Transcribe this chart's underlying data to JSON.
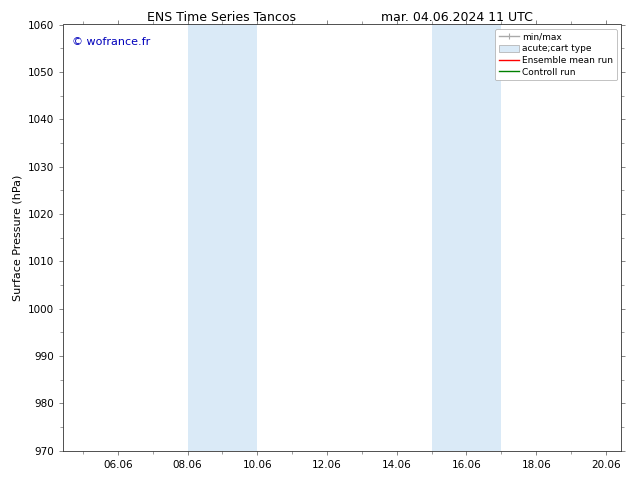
{
  "title": "ENS Time Series Tancos",
  "title2": "mar. 04.06.2024 11 UTC",
  "ylabel": "Surface Pressure (hPa)",
  "ylim": [
    970,
    1060
  ],
  "yticks": [
    970,
    980,
    990,
    1000,
    1010,
    1020,
    1030,
    1040,
    1050,
    1060
  ],
  "xlim": [
    4.5,
    20.5
  ],
  "xticks": [
    6.06,
    8.06,
    10.06,
    12.06,
    14.06,
    16.06,
    18.06,
    20.06
  ],
  "xticklabels": [
    "06.06",
    "08.06",
    "10.06",
    "12.06",
    "14.06",
    "16.06",
    "18.06",
    "20.06"
  ],
  "shaded_bands": [
    {
      "xmin": 8.06,
      "xmax": 10.06
    },
    {
      "xmin": 15.06,
      "xmax": 17.06
    }
  ],
  "shaded_color": "#daeaf7",
  "watermark_text": "© wofrance.fr",
  "watermark_color": "#0000bb",
  "legend_entries": [
    {
      "label": "min/max",
      "color": "#aaaaaa",
      "lw": 1
    },
    {
      "label": "acute;cart type",
      "color": "#daeaf7",
      "lw": 6
    },
    {
      "label": "Ensemble mean run",
      "color": "red",
      "lw": 1.0
    },
    {
      "label": "Controll run",
      "color": "green",
      "lw": 1.0
    }
  ],
  "bg_color": "#ffffff",
  "title_fontsize": 9,
  "ylabel_fontsize": 8,
  "tick_fontsize": 7.5,
  "watermark_fontsize": 8,
  "legend_fontsize": 6.5
}
